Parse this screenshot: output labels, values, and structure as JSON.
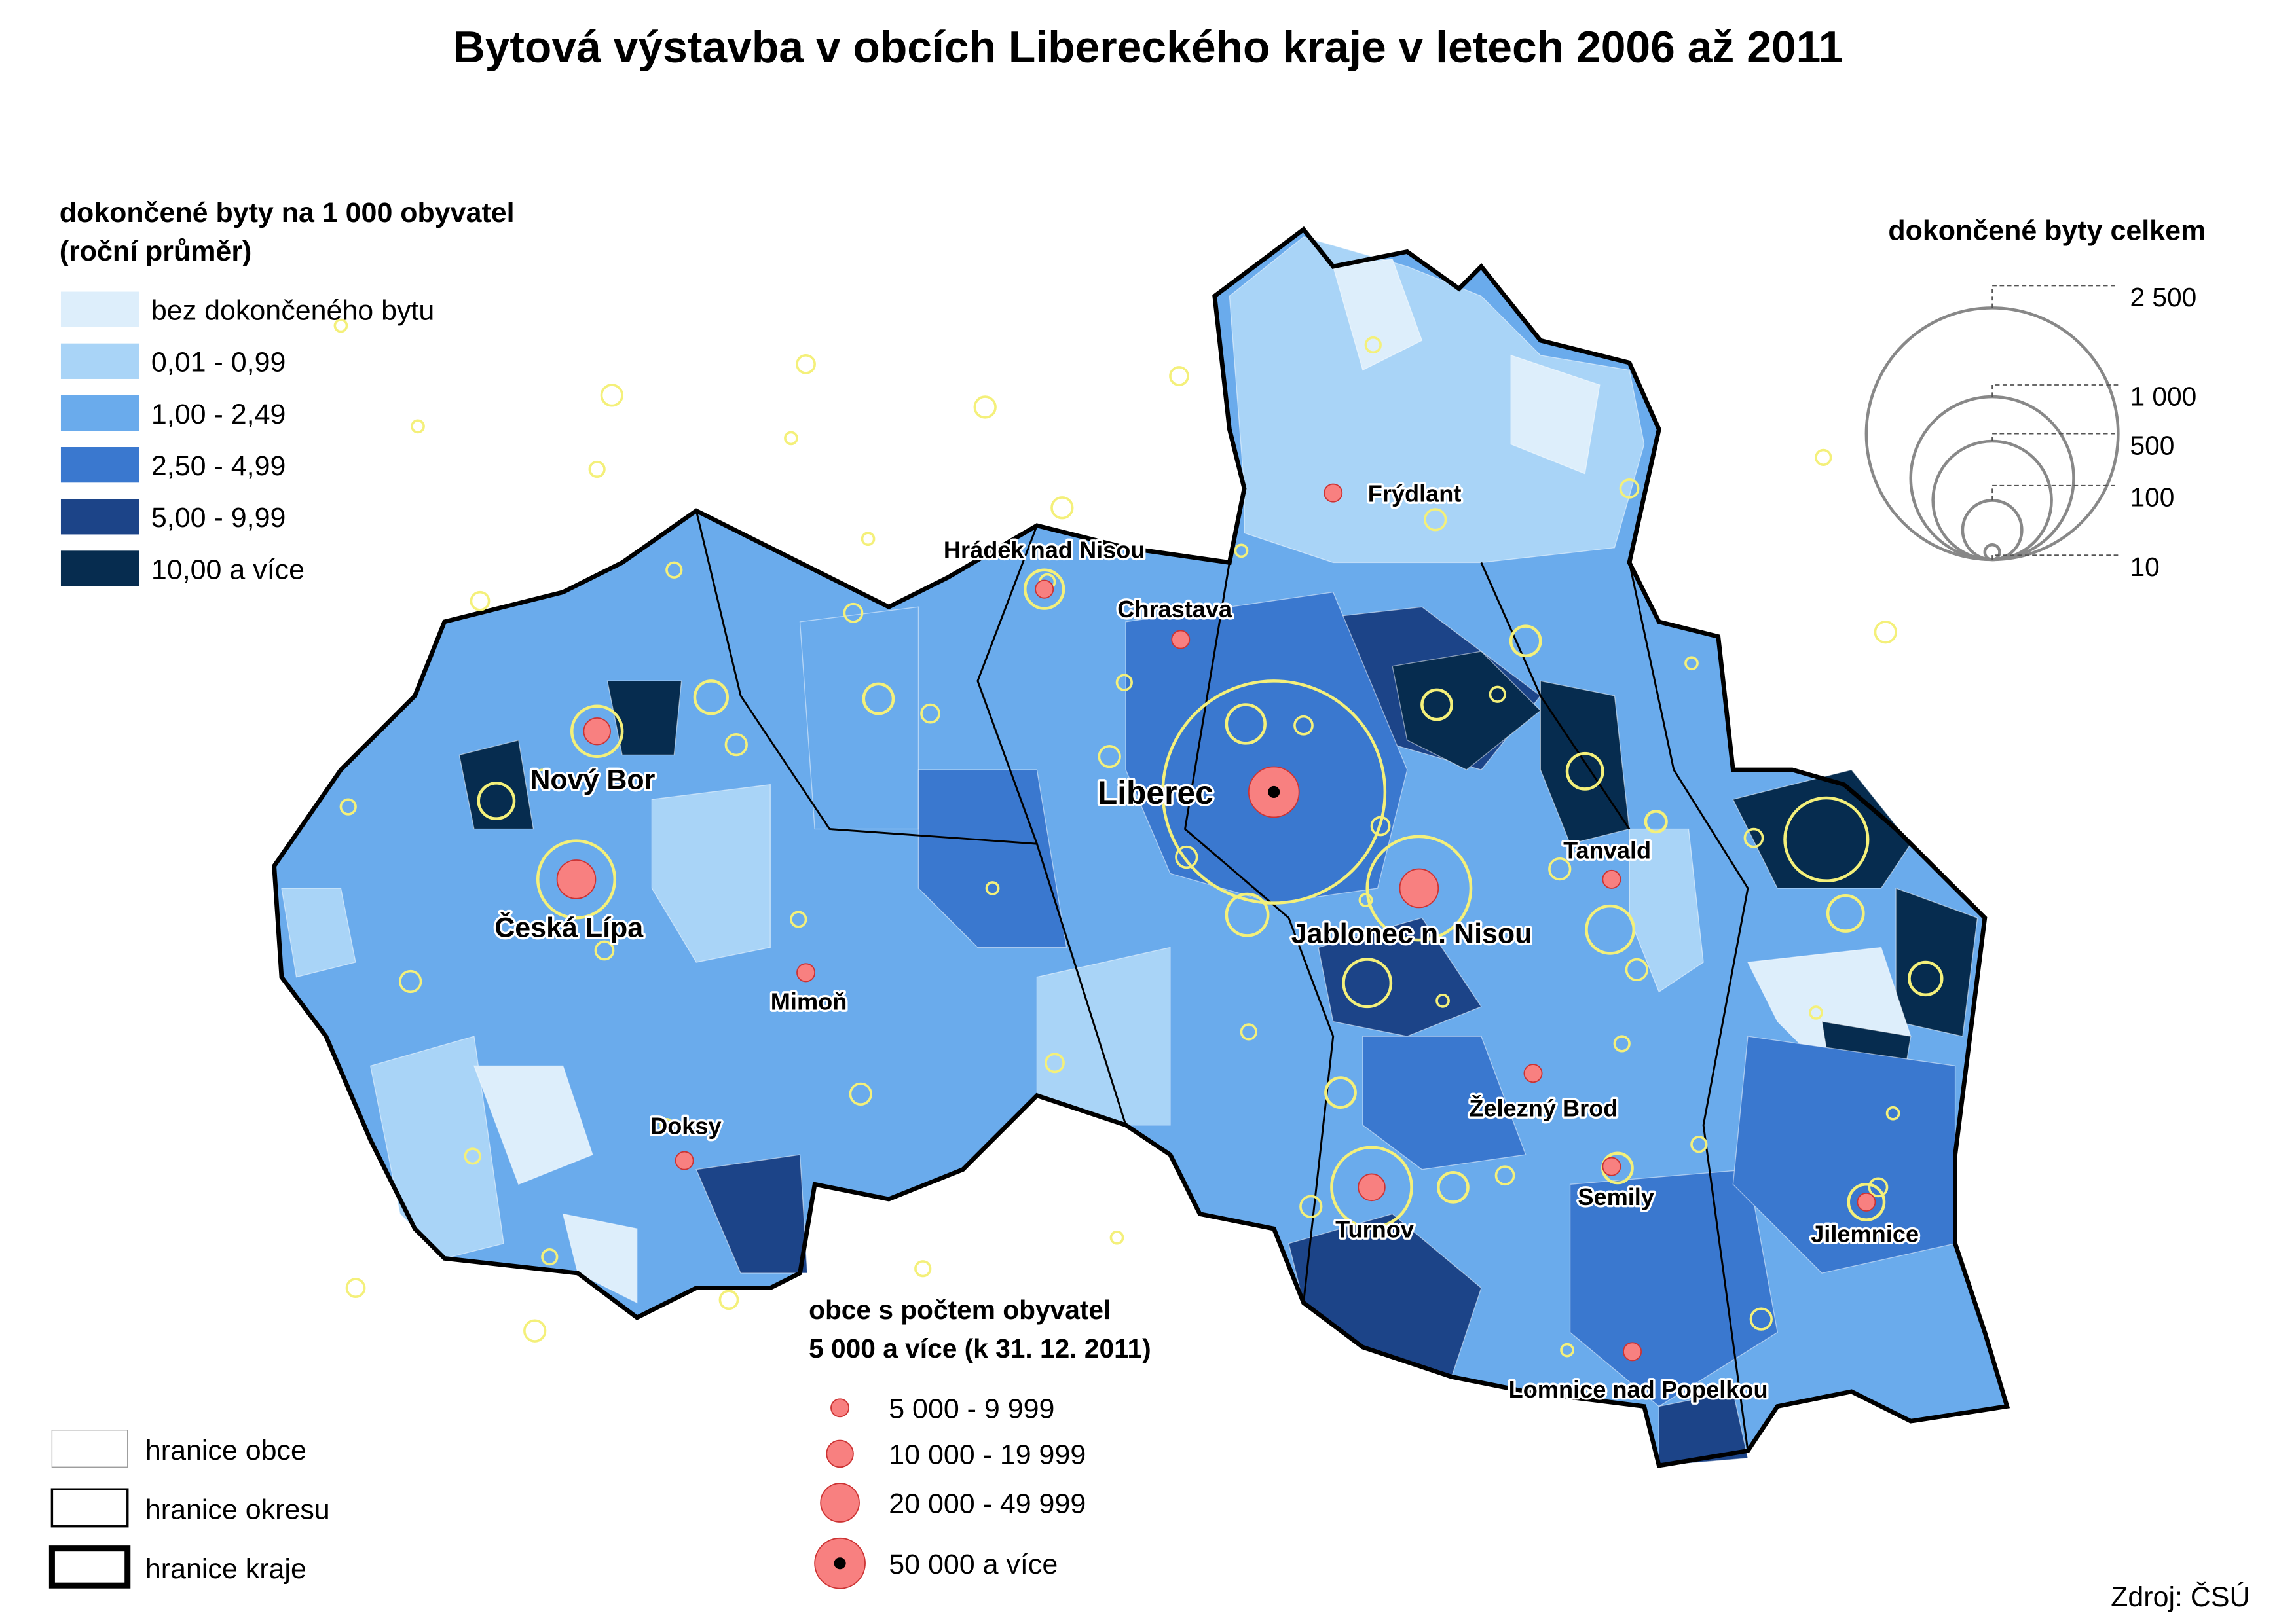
{
  "title": "Bytová výstavba v obcích Libereckého kraje v letech 2006 až 2011",
  "choropleth_legend": {
    "title_lines": [
      "dokončené byty na 1 000 obyvatel",
      "(roční průměr)"
    ],
    "classes": [
      {
        "label": "bez dokončeného bytu",
        "color": "#ddeefb"
      },
      {
        "label": "0,01 - 0,99",
        "color": "#a9d4f7"
      },
      {
        "label": "1,00 - 2,49",
        "color": "#6aabec"
      },
      {
        "label": "2,50 - 4,99",
        "color": "#3a78cf"
      },
      {
        "label": "5,00 - 9,99",
        "color": "#1c4488"
      },
      {
        "label": "10,00 a více",
        "color": "#062c4f"
      }
    ]
  },
  "size_legend": {
    "title": "dokončené byty celkem",
    "labels": [
      "2 500",
      "1 000",
      "500",
      "100",
      "10"
    ]
  },
  "population_legend": {
    "title_lines": [
      "obce s počtem obyvatel",
      "5 000 a více (k 31. 12. 2011)"
    ],
    "classes": [
      "5 000 - 9 999",
      "10 000 - 19 999",
      "20 000 - 49 999",
      "50 000 a více"
    ]
  },
  "boundary_legend": [
    "hranice obce",
    "hranice okresu",
    "hranice kraje"
  ],
  "towns": [
    "Frýdlant",
    "Hrádek nad Nisou",
    "Chrastava",
    "Liberec",
    "Nový Bor",
    "Česká Lípa",
    "Jablonec n. Nisou",
    "Tanvald",
    "Mimoň",
    "Doksy",
    "Železný Brod",
    "Semily",
    "Turnov",
    "Jilemnice",
    "Lomnice nad Popelkou"
  ],
  "source": "Zdroj: ČSÚ"
}
